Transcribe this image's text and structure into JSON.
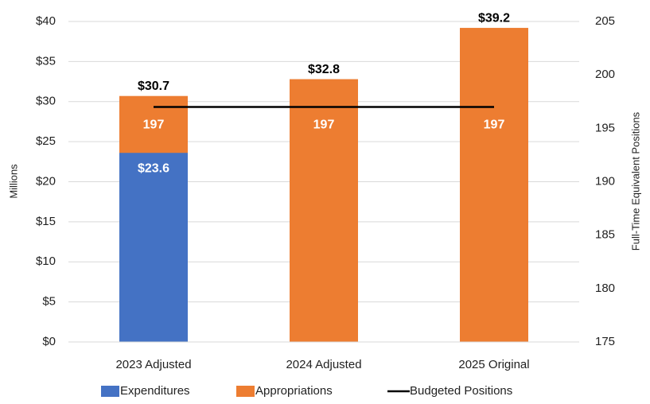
{
  "chart_data": {
    "type": "bar",
    "y_label": "Millions",
    "y2_label": "Full-Time Equivalent Positions",
    "categories": [
      "2023 Adjusted",
      "2024 Adjusted",
      "2025 Original"
    ],
    "series": [
      {
        "name": "Expenditures",
        "type": "bar",
        "color": "#4472c4",
        "values": [
          23.6,
          null,
          null
        ],
        "value_labels": [
          "$23.6",
          null,
          null
        ]
      },
      {
        "name": "Appropriations",
        "type": "bar",
        "color": "#ed7d31",
        "values": [
          30.7,
          32.8,
          39.2
        ],
        "value_labels": [
          "$30.7",
          "$32.8",
          "$39.2"
        ]
      },
      {
        "name": "Budgeted Positions",
        "type": "line",
        "axis": "y2",
        "color": "#000000",
        "values": [
          197,
          197,
          197
        ]
      }
    ],
    "ylim": [
      0,
      40
    ],
    "yticks": [
      {
        "value": 0,
        "label": "$0"
      },
      {
        "value": 5,
        "label": "$5"
      },
      {
        "value": 10,
        "label": "$10"
      },
      {
        "value": 15,
        "label": "$15"
      },
      {
        "value": 20,
        "label": "$20"
      },
      {
        "value": 25,
        "label": "$25"
      },
      {
        "value": 30,
        "label": "$30"
      },
      {
        "value": 35,
        "label": "$35"
      },
      {
        "value": 40,
        "label": "$40"
      }
    ],
    "y2lim": [
      175,
      205
    ],
    "y2ticks": [
      175,
      180,
      185,
      190,
      195,
      200,
      205
    ],
    "grid": true,
    "legend": "bottom"
  }
}
